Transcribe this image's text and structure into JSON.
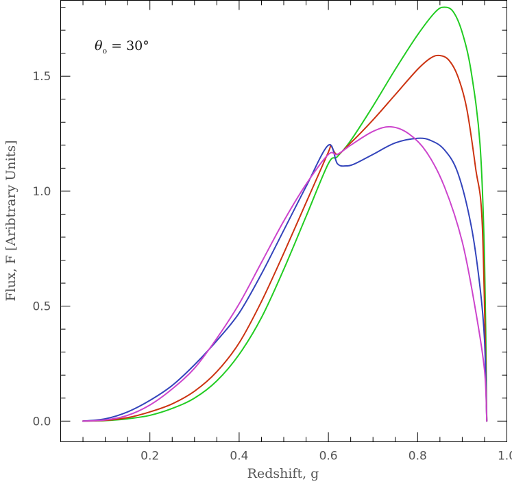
{
  "chart_data": {
    "type": "line",
    "annotation": {
      "symbol": "θ",
      "subscript": "o",
      "text": " = 30°"
    },
    "xlabel": "Redshift, g",
    "ylabel": "Flux, F [Aribtrary Units]",
    "xlim": [
      0.0,
      1.0
    ],
    "ylim": [
      -0.09,
      1.83
    ],
    "x_ticks": {
      "major": [
        0.2,
        0.4,
        0.6,
        0.8,
        1.0
      ],
      "labels": [
        "0.2",
        "0.4",
        "0.6",
        "0.8",
        "1.0"
      ],
      "minor_step": 0.05
    },
    "y_ticks": {
      "major": [
        0.0,
        0.5,
        1.0,
        1.5
      ],
      "labels": [
        "0.0",
        "0.5",
        "1.0",
        "1.5"
      ],
      "minor_step": 0.1
    },
    "grid": false,
    "legend": "none",
    "series": [
      {
        "color": "#22cc22",
        "x": [
          0.05,
          0.1,
          0.15,
          0.2,
          0.25,
          0.3,
          0.35,
          0.4,
          0.45,
          0.5,
          0.55,
          0.6,
          0.62,
          0.65,
          0.7,
          0.75,
          0.8,
          0.84,
          0.86,
          0.88,
          0.9,
          0.92,
          0.94,
          0.95,
          0.955
        ],
        "y": [
          0.0,
          0.002,
          0.01,
          0.025,
          0.055,
          0.1,
          0.175,
          0.29,
          0.45,
          0.66,
          0.89,
          1.12,
          1.15,
          1.22,
          1.37,
          1.53,
          1.68,
          1.78,
          1.8,
          1.78,
          1.69,
          1.52,
          1.2,
          0.7,
          0.0
        ]
      },
      {
        "color": "#cc3311",
        "x": [
          0.05,
          0.1,
          0.15,
          0.2,
          0.25,
          0.3,
          0.35,
          0.4,
          0.45,
          0.5,
          0.55,
          0.6,
          0.605,
          0.62,
          0.65,
          0.7,
          0.75,
          0.8,
          0.83,
          0.85,
          0.87,
          0.89,
          0.91,
          0.93,
          0.945,
          0.955
        ],
        "y": [
          0.0,
          0.003,
          0.015,
          0.04,
          0.075,
          0.13,
          0.215,
          0.34,
          0.52,
          0.73,
          0.95,
          1.17,
          1.2,
          1.16,
          1.21,
          1.31,
          1.42,
          1.53,
          1.58,
          1.59,
          1.57,
          1.5,
          1.36,
          1.1,
          0.85,
          0.0
        ]
      },
      {
        "color": "#3344bb",
        "x": [
          0.05,
          0.1,
          0.15,
          0.2,
          0.25,
          0.3,
          0.35,
          0.4,
          0.45,
          0.5,
          0.55,
          0.6,
          0.62,
          0.64,
          0.66,
          0.7,
          0.75,
          0.8,
          0.83,
          0.86,
          0.89,
          0.92,
          0.94,
          0.95,
          0.955
        ],
        "y": [
          0.0,
          0.01,
          0.04,
          0.09,
          0.155,
          0.245,
          0.35,
          0.47,
          0.64,
          0.83,
          1.02,
          1.2,
          1.12,
          1.11,
          1.12,
          1.16,
          1.21,
          1.23,
          1.22,
          1.18,
          1.08,
          0.85,
          0.58,
          0.35,
          0.0
        ]
      },
      {
        "color": "#cc44cc",
        "x": [
          0.05,
          0.1,
          0.15,
          0.2,
          0.25,
          0.3,
          0.35,
          0.4,
          0.45,
          0.5,
          0.55,
          0.6,
          0.62,
          0.65,
          0.7,
          0.74,
          0.78,
          0.82,
          0.86,
          0.9,
          0.93,
          0.95,
          0.955
        ],
        "y": [
          0.0,
          0.005,
          0.025,
          0.07,
          0.14,
          0.23,
          0.36,
          0.51,
          0.69,
          0.87,
          1.03,
          1.16,
          1.16,
          1.2,
          1.26,
          1.28,
          1.25,
          1.17,
          1.02,
          0.78,
          0.48,
          0.22,
          0.0
        ]
      }
    ]
  }
}
